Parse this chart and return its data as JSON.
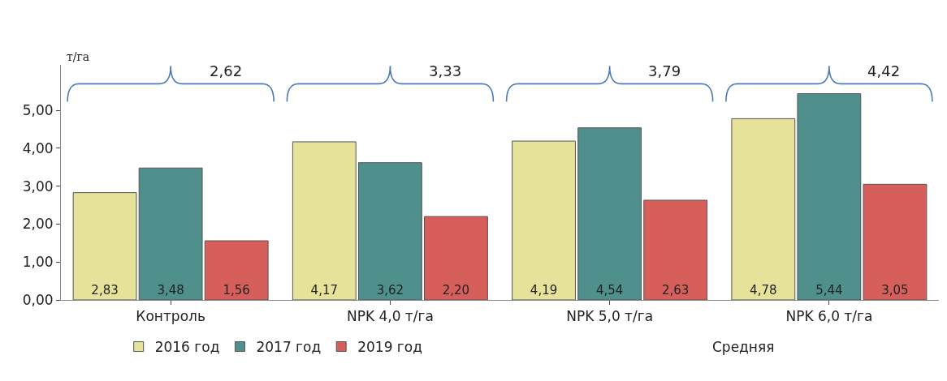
{
  "chart_data": {
    "type": "bar",
    "ylabel": "т/га",
    "categories": [
      "Контроль",
      "NPK 4,0 т/га",
      "NPK 5,0 т/га",
      "NPK 6,0 т/га"
    ],
    "series": [
      {
        "name": "2016 год",
        "color": "#e6e29a",
        "values": [
          2.83,
          4.17,
          4.19,
          4.78
        ],
        "value_labels": [
          "2,83",
          "4,17",
          "4,19",
          "4,78"
        ]
      },
      {
        "name": "2017 год",
        "color": "#4f8f8c",
        "values": [
          3.48,
          3.62,
          4.54,
          5.44
        ],
        "value_labels": [
          "3,48",
          "3,62",
          "4,54",
          "5,44"
        ]
      },
      {
        "name": "2019 год",
        "color": "#d65f5c",
        "values": [
          1.56,
          2.2,
          2.63,
          3.05
        ],
        "value_labels": [
          "1,56",
          "2,20",
          "2,63",
          "3,05"
        ]
      }
    ],
    "annotations": [
      "2,62",
      "3,33",
      "3,79",
      "4,42",
      "Средняя"
    ],
    "ylim": [
      0,
      6.2
    ],
    "yticks": [
      {
        "value": 0,
        "label": "0,00"
      },
      {
        "value": 1,
        "label": "1,00"
      },
      {
        "value": 2,
        "label": "2,00"
      },
      {
        "value": 3,
        "label": "3,00"
      },
      {
        "value": 4,
        "label": "4,00"
      },
      {
        "value": 5,
        "label": "5,00"
      }
    ],
    "grid": false,
    "legend": "bottom"
  }
}
